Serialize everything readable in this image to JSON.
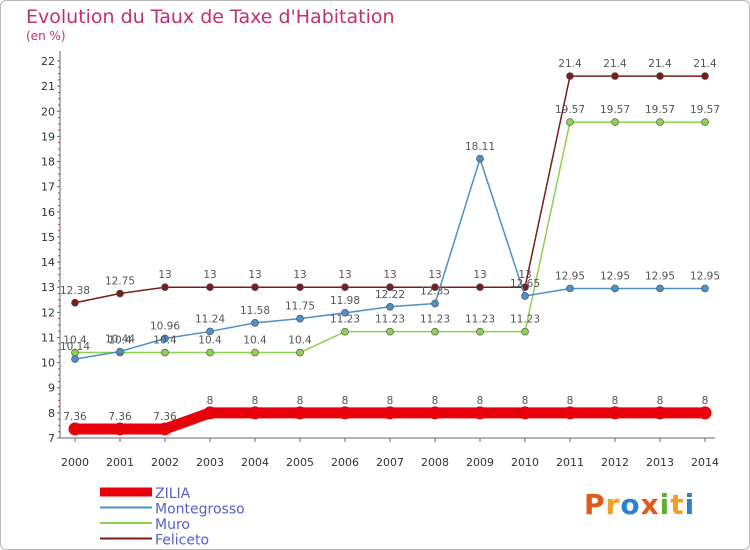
{
  "title": "Evolution du Taux de Taxe d'Habitation",
  "subtitle": "(en %)",
  "logo": {
    "text": "Proxiti",
    "colors": [
      "#e05a1a",
      "#f0a020",
      "#3080d0",
      "#e05a1a",
      "#60b030",
      "#f0a020",
      "#3080d0"
    ]
  },
  "chart_data": {
    "type": "line",
    "x": [
      2000,
      2001,
      2002,
      2003,
      2004,
      2005,
      2006,
      2007,
      2008,
      2009,
      2010,
      2011,
      2012,
      2013,
      2014
    ],
    "ylim": [
      7,
      22
    ],
    "yticks": [
      7,
      8,
      9,
      10,
      11,
      12,
      13,
      14,
      15,
      16,
      17,
      18,
      19,
      20,
      21,
      22
    ],
    "grid": false,
    "legend_position": "bottom-left",
    "series": [
      {
        "name": "ZILIA",
        "color": "#e8000b",
        "values": [
          7.36,
          7.36,
          7.36,
          8,
          8,
          8,
          8,
          8,
          8,
          8,
          8,
          8,
          8,
          8,
          8
        ]
      },
      {
        "name": "Montegrosso",
        "color": "#4b90c8",
        "values": [
          10.14,
          10.44,
          10.96,
          11.24,
          11.58,
          11.75,
          11.98,
          12.22,
          12.35,
          18.11,
          12.65,
          12.95,
          12.95,
          12.95,
          12.95
        ]
      },
      {
        "name": "Muro",
        "color": "#8ed050",
        "values": [
          10.4,
          10.4,
          10.4,
          10.4,
          10.4,
          10.4,
          11.23,
          11.23,
          11.23,
          11.23,
          11.23,
          19.57,
          19.57,
          19.57,
          19.57
        ]
      },
      {
        "name": "Feliceto",
        "color": "#7a1c1c",
        "values": [
          12.38,
          12.75,
          13,
          13,
          13,
          13,
          13,
          13,
          13,
          13,
          13,
          21.4,
          21.4,
          21.4,
          21.4
        ]
      }
    ],
    "data_labels": {
      "ZILIA": [
        "7.36",
        "7.36",
        "7.36",
        "8",
        "8",
        "8",
        "8",
        "8",
        "8",
        "8",
        "8",
        "8",
        "8",
        "8",
        "8"
      ],
      "Montegrosso": [
        "10.14",
        "10.44",
        "10.96",
        "11.24",
        "11.58",
        "11.75",
        "11.98",
        "12.22",
        "12.35",
        "18.11",
        "12.65",
        "12.95",
        "12.95",
        "12.95",
        "12.95"
      ],
      "Muro": [
        "10.4",
        "10.4",
        "10.4",
        "10.4",
        "10.4",
        "10.4",
        "11.23",
        "11.23",
        "11.23",
        "11.23",
        "11.23",
        "19.57",
        "19.57",
        "19.57",
        "19.57"
      ],
      "Feliceto": [
        "12.38",
        "12.75",
        "13",
        "13",
        "13",
        "13",
        "13",
        "13",
        "13",
        "13",
        "13",
        "21.4",
        "21.4",
        "21.4",
        "21.4"
      ]
    }
  }
}
